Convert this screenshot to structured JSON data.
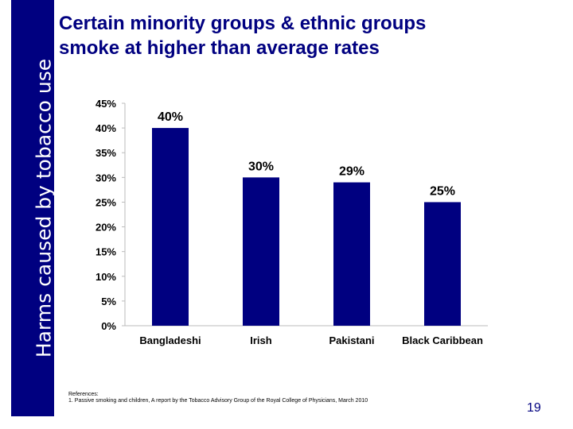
{
  "sidebar": {
    "text": "Harms caused by tobacco use"
  },
  "title": {
    "line1": "Certain minority groups & ethnic groups",
    "line2": "smoke at higher than average rates"
  },
  "chart_data": {
    "type": "bar",
    "categories": [
      "Bangladeshi",
      "Irish",
      "Pakistani",
      "Black Caribbean"
    ],
    "values": [
      40,
      30,
      29,
      25
    ],
    "value_labels": [
      "40%",
      "30%",
      "29%",
      "25%"
    ],
    "yticks": [
      0,
      5,
      10,
      15,
      20,
      25,
      30,
      35,
      40,
      45
    ],
    "ytick_labels": [
      "0%",
      "5%",
      "10%",
      "15%",
      "20%",
      "25%",
      "30%",
      "35%",
      "40%",
      "45%"
    ],
    "ylim": [
      0,
      45
    ],
    "grid": false,
    "bar_color": "#000080"
  },
  "references": {
    "heading": "References:",
    "items": [
      "1. Passive smoking and children, A report by the Tobacco Advisory Group of the Royal College of Physicians, March 2010"
    ]
  },
  "page_number": "19",
  "colors": {
    "accent": "#000080"
  }
}
